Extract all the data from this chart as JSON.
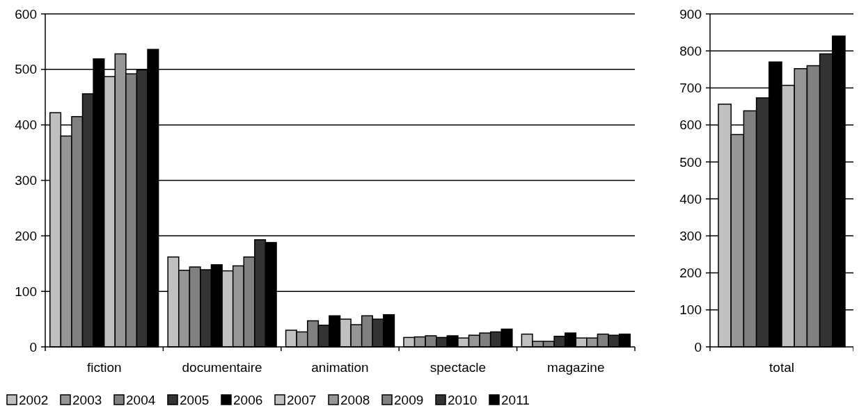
{
  "chart_data": [
    {
      "type": "bar",
      "categories": [
        "fiction",
        "documentaire",
        "animation",
        "spectacle",
        "magazine"
      ],
      "ylim": [
        0,
        600
      ],
      "yticks": [
        0,
        100,
        200,
        300,
        400,
        500,
        600
      ],
      "grid": "y",
      "legend": "bottom left",
      "series": [
        {
          "name": "2002",
          "color": "#c0c0c0",
          "values": [
            422,
            162,
            30,
            17,
            23
          ]
        },
        {
          "name": "2003",
          "color": "#969696",
          "values": [
            380,
            138,
            27,
            18,
            10
          ]
        },
        {
          "name": "2004",
          "color": "#808080",
          "values": [
            415,
            144,
            47,
            20,
            10
          ]
        },
        {
          "name": "2005",
          "color": "#333333",
          "values": [
            456,
            139,
            39,
            17,
            19
          ]
        },
        {
          "name": "2006",
          "color": "#000000",
          "values": [
            519,
            148,
            56,
            20,
            25
          ]
        },
        {
          "name": "2007",
          "color": "#c0c0c0",
          "values": [
            487,
            137,
            50,
            16,
            16
          ]
        },
        {
          "name": "2008",
          "color": "#969696",
          "values": [
            528,
            146,
            40,
            21,
            16
          ]
        },
        {
          "name": "2009",
          "color": "#808080",
          "values": [
            492,
            162,
            56,
            25,
            23
          ]
        },
        {
          "name": "2010",
          "color": "#333333",
          "values": [
            499,
            193,
            50,
            27,
            21
          ]
        },
        {
          "name": "2011",
          "color": "#000000",
          "values": [
            536,
            188,
            58,
            32,
            23
          ]
        }
      ]
    },
    {
      "type": "bar",
      "xlabel": "total",
      "categories": [
        null,
        null,
        null,
        null,
        null,
        null,
        null,
        null,
        null,
        null
      ],
      "ylim": [
        0,
        900
      ],
      "yticks": [
        0,
        100,
        200,
        300,
        400,
        500,
        600,
        700,
        800,
        900
      ],
      "grid": "y",
      "values": [
        656,
        574,
        638,
        673,
        770,
        707,
        752,
        760,
        792,
        840
      ],
      "colors": [
        "#c0c0c0",
        "#969696",
        "#808080",
        "#333333",
        "#000000",
        "#c0c0c0",
        "#969696",
        "#808080",
        "#333333",
        "#000000"
      ]
    }
  ]
}
